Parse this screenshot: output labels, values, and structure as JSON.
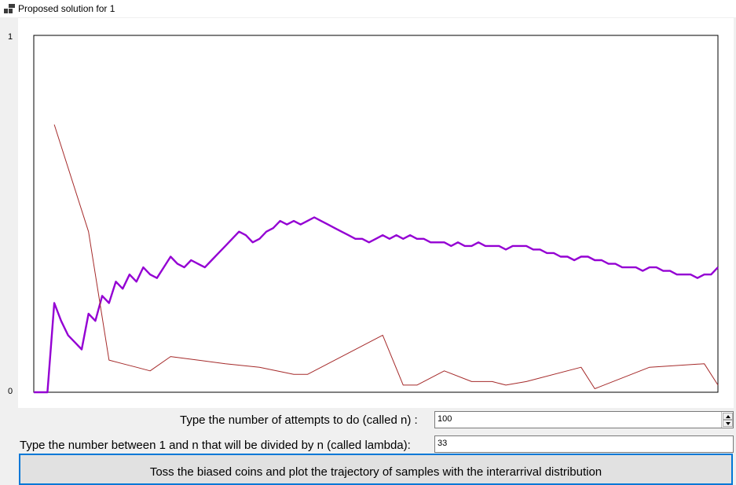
{
  "window": {
    "title": "Proposed solution for 1"
  },
  "form": {
    "attempts_label": "Type the number of attempts to do (called n) :",
    "attempts_value": "100",
    "lambda_label": "Type the number between 1 and n that will be divided by n (called lambda):",
    "lambda_value": "33",
    "toss_button_label": "Toss the biased coins and plot the trajectory of samples with the interarrival distribution"
  },
  "colors": {
    "trajectory": "#9400d3",
    "interarrival": "#a52a2a",
    "button_border": "#0078d7"
  },
  "chart_data": {
    "type": "line",
    "title": "",
    "xlabel": "",
    "ylabel": "",
    "ylim": [
      0,
      1
    ],
    "xlim": [
      0,
      100
    ],
    "yticks": [
      "0",
      "1"
    ],
    "grid": false,
    "series": [
      {
        "color": "#9400d3",
        "points": [
          [
            0,
            0
          ],
          [
            2,
            0
          ],
          [
            3,
            0.25
          ],
          [
            4,
            0.2
          ],
          [
            5,
            0.16
          ],
          [
            6,
            0.14
          ],
          [
            7,
            0.12
          ],
          [
            8,
            0.22
          ],
          [
            9,
            0.2
          ],
          [
            10,
            0.27
          ],
          [
            11,
            0.25
          ],
          [
            12,
            0.31
          ],
          [
            13,
            0.29
          ],
          [
            14,
            0.33
          ],
          [
            15,
            0.31
          ],
          [
            16,
            0.35
          ],
          [
            17,
            0.33
          ],
          [
            18,
            0.32
          ],
          [
            19,
            0.35
          ],
          [
            20,
            0.38
          ],
          [
            21,
            0.36
          ],
          [
            22,
            0.35
          ],
          [
            23,
            0.37
          ],
          [
            24,
            0.36
          ],
          [
            25,
            0.35
          ],
          [
            26,
            0.37
          ],
          [
            27,
            0.39
          ],
          [
            28,
            0.41
          ],
          [
            29,
            0.43
          ],
          [
            30,
            0.45
          ],
          [
            31,
            0.44
          ],
          [
            32,
            0.42
          ],
          [
            33,
            0.43
          ],
          [
            34,
            0.45
          ],
          [
            35,
            0.46
          ],
          [
            36,
            0.48
          ],
          [
            37,
            0.47
          ],
          [
            38,
            0.48
          ],
          [
            39,
            0.47
          ],
          [
            40,
            0.48
          ],
          [
            41,
            0.49
          ],
          [
            42,
            0.48
          ],
          [
            43,
            0.47
          ],
          [
            44,
            0.46
          ],
          [
            45,
            0.45
          ],
          [
            46,
            0.44
          ],
          [
            47,
            0.43
          ],
          [
            48,
            0.43
          ],
          [
            49,
            0.42
          ],
          [
            50,
            0.43
          ],
          [
            51,
            0.44
          ],
          [
            52,
            0.43
          ],
          [
            53,
            0.44
          ],
          [
            54,
            0.43
          ],
          [
            55,
            0.44
          ],
          [
            56,
            0.43
          ],
          [
            57,
            0.43
          ],
          [
            58,
            0.42
          ],
          [
            59,
            0.42
          ],
          [
            60,
            0.42
          ],
          [
            61,
            0.41
          ],
          [
            62,
            0.42
          ],
          [
            63,
            0.41
          ],
          [
            64,
            0.41
          ],
          [
            65,
            0.42
          ],
          [
            66,
            0.41
          ],
          [
            67,
            0.41
          ],
          [
            68,
            0.41
          ],
          [
            69,
            0.4
          ],
          [
            70,
            0.41
          ],
          [
            71,
            0.41
          ],
          [
            72,
            0.41
          ],
          [
            73,
            0.4
          ],
          [
            74,
            0.4
          ],
          [
            75,
            0.39
          ],
          [
            76,
            0.39
          ],
          [
            77,
            0.38
          ],
          [
            78,
            0.38
          ],
          [
            79,
            0.37
          ],
          [
            80,
            0.38
          ],
          [
            81,
            0.38
          ],
          [
            82,
            0.37
          ],
          [
            83,
            0.37
          ],
          [
            84,
            0.36
          ],
          [
            85,
            0.36
          ],
          [
            86,
            0.35
          ],
          [
            87,
            0.35
          ],
          [
            88,
            0.35
          ],
          [
            89,
            0.34
          ],
          [
            90,
            0.35
          ],
          [
            91,
            0.35
          ],
          [
            92,
            0.34
          ],
          [
            93,
            0.34
          ],
          [
            94,
            0.33
          ],
          [
            95,
            0.33
          ],
          [
            96,
            0.33
          ],
          [
            97,
            0.32
          ],
          [
            98,
            0.33
          ],
          [
            99,
            0.33
          ],
          [
            100,
            0.35
          ]
        ]
      },
      {
        "color": "#a52a2a",
        "points": [
          [
            3,
            0.75
          ],
          [
            8,
            0.45
          ],
          [
            11,
            0.09
          ],
          [
            13,
            0.08
          ],
          [
            15,
            0.07
          ],
          [
            17,
            0.06
          ],
          [
            20,
            0.1
          ],
          [
            24,
            0.09
          ],
          [
            28,
            0.08
          ],
          [
            33,
            0.07
          ],
          [
            38,
            0.05
          ],
          [
            40,
            0.05
          ],
          [
            51,
            0.16
          ],
          [
            54,
            0.02
          ],
          [
            56,
            0.02
          ],
          [
            60,
            0.06
          ],
          [
            64,
            0.03
          ],
          [
            67,
            0.03
          ],
          [
            69,
            0.02
          ],
          [
            72,
            0.03
          ],
          [
            80,
            0.07
          ],
          [
            82,
            0.01
          ],
          [
            90,
            0.07
          ],
          [
            98,
            0.08
          ],
          [
            100,
            0.02
          ]
        ]
      }
    ]
  }
}
